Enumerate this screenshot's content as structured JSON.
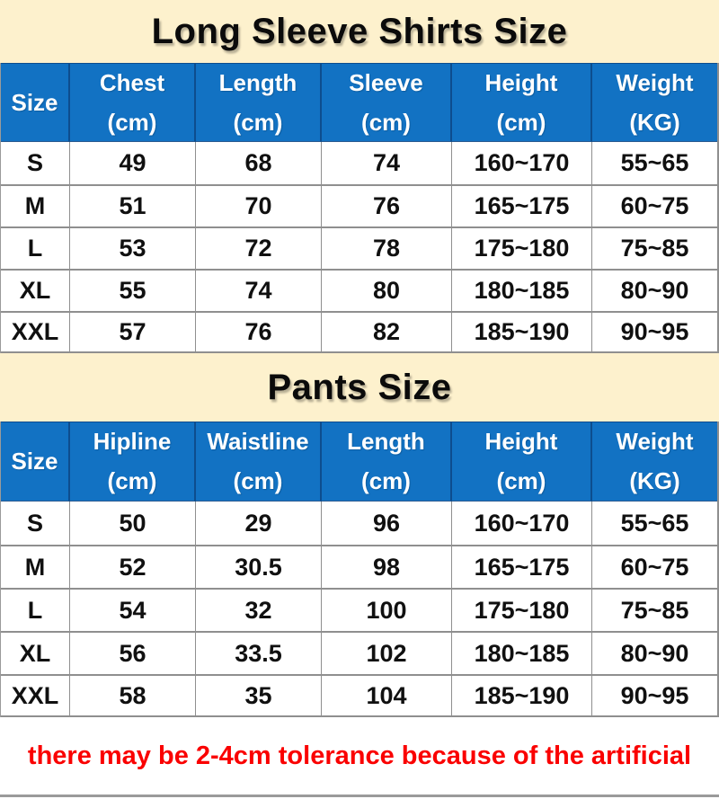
{
  "colors": {
    "header_bg": "#1272C3",
    "header_divider": "#0d4d8e",
    "title_band_bg": "#FDF1CD",
    "grid_line": "#8f8f8f",
    "body_text": "#101010",
    "header_text": "#ffffff",
    "footer_text": "#fa0000"
  },
  "shirts": {
    "title": "Long Sleeve Shirts Size",
    "headers": [
      {
        "label": "Size",
        "unit": ""
      },
      {
        "label": "Chest",
        "unit": "(cm)"
      },
      {
        "label": "Length",
        "unit": "(cm)"
      },
      {
        "label": "Sleeve",
        "unit": "(cm)"
      },
      {
        "label": "Height",
        "unit": "(cm)"
      },
      {
        "label": "Weight",
        "unit": "(KG)"
      }
    ],
    "rows": [
      [
        "S",
        "49",
        "68",
        "74",
        "160~170",
        "55~65"
      ],
      [
        "M",
        "51",
        "70",
        "76",
        "165~175",
        "60~75"
      ],
      [
        "L",
        "53",
        "72",
        "78",
        "175~180",
        "75~85"
      ],
      [
        "XL",
        "55",
        "74",
        "80",
        "180~185",
        "80~90"
      ],
      [
        "XXL",
        "57",
        "76",
        "82",
        "185~190",
        "90~95"
      ]
    ]
  },
  "pants": {
    "title": "Pants Size",
    "headers": [
      {
        "label": "Size",
        "unit": ""
      },
      {
        "label": "Hipline",
        "unit": "(cm)"
      },
      {
        "label": "Waistline",
        "unit": "(cm)"
      },
      {
        "label": "Length",
        "unit": "(cm)"
      },
      {
        "label": "Height",
        "unit": "(cm)"
      },
      {
        "label": "Weight",
        "unit": "(KG)"
      }
    ],
    "rows": [
      [
        "S",
        "50",
        "29",
        "96",
        "160~170",
        "55~65"
      ],
      [
        "M",
        "52",
        "30.5",
        "98",
        "165~175",
        "60~75"
      ],
      [
        "L",
        "54",
        "32",
        "100",
        "175~180",
        "75~85"
      ],
      [
        "XL",
        "56",
        "33.5",
        "102",
        "180~185",
        "80~90"
      ],
      [
        "XXL",
        "58",
        "35",
        "104",
        "185~190",
        "90~95"
      ]
    ]
  },
  "footer": {
    "note": "there may be 2-4cm tolerance because of the artificial"
  }
}
